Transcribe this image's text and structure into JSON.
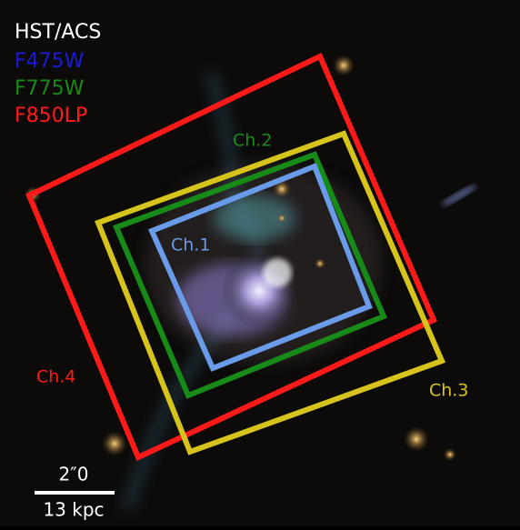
{
  "legend": {
    "title": "HST/ACS",
    "filters": [
      "F475W",
      "F775W",
      "F850LP"
    ]
  },
  "channels": [
    {
      "label": "Ch.1"
    },
    {
      "label": "Ch.2"
    },
    {
      "label": "Ch.3"
    },
    {
      "label": "Ch.4"
    }
  ],
  "scale_bar": {
    "angular": "2″0",
    "physical": "13 kpc"
  }
}
